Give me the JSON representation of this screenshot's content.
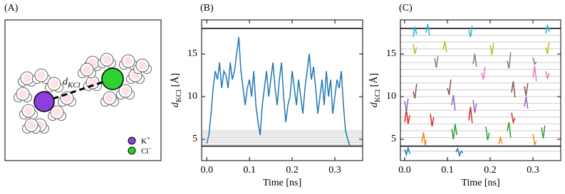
{
  "panel_a": {
    "label": "(A)",
    "distance_label": {
      "main": "d",
      "sub": "KCl"
    },
    "legend": [
      {
        "name": "K",
        "charge": "+",
        "color": "#8e3fdb"
      },
      {
        "name": "Cl",
        "charge": "−",
        "color": "#2fd12f"
      }
    ]
  },
  "chart_data": [
    {
      "type": "line",
      "label": "(B)",
      "xlabel": "Time [ns]",
      "ylabel": {
        "main": "d",
        "sub": "KCl",
        "unit": "[Å]"
      },
      "xlim": [
        -0.012,
        0.365
      ],
      "ylim": [
        2.5,
        19
      ],
      "xticks": [
        {
          "value": 0,
          "label": "0.0"
        },
        0.1,
        0.2,
        0.3
      ],
      "yticks": [
        5,
        10,
        15
      ],
      "ref_lines": [
        {
          "color": "#cccccc",
          "values": [
            4.4,
            4.6,
            4.8,
            5.0,
            5.2,
            5.4,
            5.6,
            5.8,
            6.0
          ]
        },
        {
          "color": "#000000",
          "values": [
            4.2,
            18
          ]
        }
      ],
      "series": [
        {
          "color": "#1f77b4",
          "x": [
            0,
            0.005,
            0.01,
            0.015,
            0.02,
            0.025,
            0.03,
            0.035,
            0.04,
            0.045,
            0.05,
            0.055,
            0.06,
            0.065,
            0.07,
            0.075,
            0.08,
            0.085,
            0.09,
            0.095,
            0.1,
            0.105,
            0.11,
            0.115,
            0.12,
            0.125,
            0.13,
            0.135,
            0.14,
            0.145,
            0.15,
            0.155,
            0.16,
            0.165,
            0.17,
            0.175,
            0.18,
            0.185,
            0.19,
            0.195,
            0.2,
            0.205,
            0.21,
            0.215,
            0.22,
            0.225,
            0.23,
            0.235,
            0.24,
            0.245,
            0.25,
            0.255,
            0.26,
            0.265,
            0.27,
            0.275,
            0.28,
            0.285,
            0.29,
            0.295,
            0.3,
            0.305,
            0.31,
            0.315,
            0.32,
            0.325,
            0.33,
            0.335
          ],
          "values": [
            4.5,
            5.5,
            8,
            11,
            13,
            12,
            14,
            11,
            13,
            12.5,
            11,
            14,
            12,
            13,
            15,
            17,
            13,
            11,
            9,
            11,
            12,
            10,
            13,
            9,
            7,
            5.5,
            9,
            11,
            13,
            10,
            12,
            14,
            11,
            9,
            12,
            14,
            10,
            7,
            9,
            10,
            13,
            11,
            9,
            12,
            10,
            8,
            11,
            13,
            15,
            12,
            13.5,
            11,
            8,
            10,
            12,
            9,
            13,
            10,
            12,
            8,
            10,
            12,
            11,
            13,
            9,
            6,
            5,
            4.2
          ]
        }
      ]
    },
    {
      "type": "line",
      "label": "(C)",
      "xlabel": "Time [ns]",
      "ylabel": {
        "main": "d",
        "sub": "KCl",
        "unit": "[Å]"
      },
      "xlim": [
        -0.01,
        0.365
      ],
      "ylim": [
        2.5,
        19
      ],
      "xticks": [
        {
          "value": 0,
          "label": "0.0"
        },
        0.1,
        0.2,
        0.3
      ],
      "yticks": [
        5,
        10,
        15
      ],
      "ref_lines": [
        {
          "color": "#cccccc",
          "values": [
            3.6,
            5.2,
            6.0,
            6.8,
            7.6,
            8.4,
            9.2,
            10.0,
            10.8,
            11.6,
            12.4,
            13.2,
            14.0,
            14.8,
            15.6,
            16.4,
            17.2
          ]
        },
        {
          "color": "#000000",
          "values": [
            4.2,
            18
          ]
        }
      ],
      "series": [
        {
          "color": "#1f77b4",
          "x": [
            0.0,
            0.004,
            0.008,
            0.012,
            0.05,
            0.12,
            0.124,
            0.128,
            0.132,
            0.136
          ],
          "values": [
            3.8,
            3.2,
            4.0,
            3.3,
            null,
            3.5,
            3.9,
            3.1,
            3.6,
            3.4
          ]
        },
        {
          "color": "#ff7f0e",
          "x": [
            0.04,
            0.044,
            0.048,
            0.05,
            0.1,
            0.22,
            0.224,
            0.228,
            0.26,
            0.3,
            0.304,
            0.308
          ],
          "values": [
            4.6,
            5.8,
            4.3,
            4.9,
            null,
            4.4,
            5.2,
            4.5,
            null,
            5.6,
            4.4,
            4.8
          ]
        },
        {
          "color": "#2ca02c",
          "x": [
            0.11,
            0.114,
            0.118,
            0.122,
            0.15,
            0.19,
            0.194,
            0.198,
            0.21,
            0.24,
            0.244,
            0.248,
            0.28,
            0.32,
            0.324,
            0.328
          ],
          "values": [
            6.2,
            5.0,
            6.8,
            5.5,
            null,
            6.5,
            4.9,
            5.8,
            null,
            6.0,
            7.0,
            5.2,
            null,
            6.4,
            5.1,
            6.6
          ]
        },
        {
          "color": "#d62728",
          "x": [
            0.0,
            0.004,
            0.008,
            0.012,
            0.03,
            0.06,
            0.064,
            0.068,
            0.1,
            0.15,
            0.154,
            0.158,
            0.2,
            0.25,
            0.254,
            0.258
          ],
          "values": [
            7.0,
            8.5,
            6.8,
            7.8,
            null,
            8.0,
            6.5,
            7.6,
            null,
            7.2,
            8.8,
            6.9,
            null,
            8.1,
            7.0,
            7.5
          ]
        },
        {
          "color": "#9467bd",
          "x": [
            0.0,
            0.004,
            0.008,
            0.05,
            0.11,
            0.114,
            0.118,
            0.14,
            0.16,
            0.164,
            0.168,
            0.22,
            0.28,
            0.284,
            0.288
          ],
          "values": [
            9.5,
            8.2,
            9.8,
            null,
            9.0,
            10.2,
            8.4,
            null,
            9.6,
            8.1,
            9.2,
            null,
            8.8,
            10.0,
            8.6
          ]
        },
        {
          "color": "#8c564b",
          "x": [
            0.02,
            0.024,
            0.028,
            0.06,
            0.1,
            0.104,
            0.108,
            0.18,
            0.25,
            0.254,
            0.258,
            0.27,
            0.28,
            0.284,
            0.288
          ],
          "values": [
            10.6,
            9.8,
            11.5,
            null,
            11.0,
            10.2,
            12.0,
            null,
            10.5,
            11.8,
            9.9,
            null,
            11.2,
            10.1,
            11.6
          ]
        },
        {
          "color": "#e377c2",
          "x": [
            0.18,
            0.184,
            0.188,
            0.24,
            0.3,
            0.304,
            0.308,
            0.32,
            0.33,
            0.334,
            0.338
          ],
          "values": [
            12.8,
            12.0,
            13.5,
            null,
            12.2,
            13.6,
            11.8,
            null,
            13.0,
            12.1,
            12.8
          ]
        },
        {
          "color": "#7f7f7f",
          "x": [
            0.07,
            0.074,
            0.078,
            0.12,
            0.16,
            0.164,
            0.168,
            0.2,
            0.24,
            0.244,
            0.248,
            0.27,
            0.3,
            0.304,
            0.308
          ],
          "values": [
            14.5,
            13.4,
            14.8,
            null,
            13.8,
            15.0,
            13.5,
            null,
            14.2,
            13.3,
            15.2,
            null,
            14.6,
            13.8,
            14.1
          ]
        },
        {
          "color": "#bcbd22",
          "x": [
            0.02,
            0.024,
            0.028,
            0.06,
            0.09,
            0.094,
            0.098,
            0.15,
            0.2,
            0.204,
            0.208,
            0.27,
            0.33,
            0.334,
            0.338
          ],
          "values": [
            16.2,
            15.0,
            15.8,
            null,
            15.5,
            16.5,
            15.2,
            null,
            16.0,
            14.9,
            16.3,
            null,
            15.8,
            15.0,
            16.4
          ]
        },
        {
          "color": "#17becf",
          "x": [
            0.02,
            0.024,
            0.028,
            0.04,
            0.05,
            0.054,
            0.058,
            0.1,
            0.15,
            0.154,
            0.158,
            0.25,
            0.33,
            0.334,
            0.338
          ],
          "values": [
            17.0,
            18.2,
            17.3,
            null,
            17.5,
            18.5,
            17.2,
            null,
            17.8,
            17.0,
            18.3,
            null,
            17.4,
            18.4,
            17.6
          ]
        }
      ]
    }
  ]
}
